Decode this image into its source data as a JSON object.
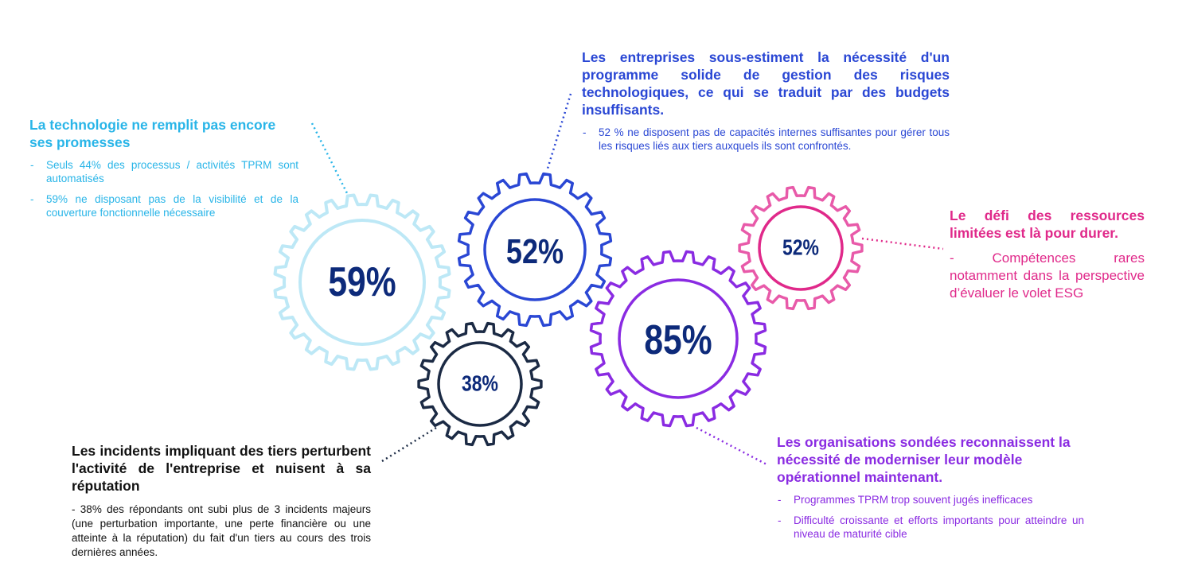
{
  "colors": {
    "light_blue": "#29b5e8",
    "blue": "#2a47d4",
    "pink": "#e0298a",
    "purple": "#8a2be2",
    "navy": "#1b2a44",
    "number": "#0d2a7a"
  },
  "gears": {
    "g59": "59%",
    "g52_blue": "52%",
    "g52_pink": "52%",
    "g85": "85%",
    "g38": "38%"
  },
  "technology": {
    "title": "La technologie ne remplit pas encore ses promesses",
    "bullets": [
      "Seuls 44% des processus / activités TPRM sont automatisés",
      "59% ne disposant pas de la visibilité et de la couverture fonctionnelle nécessaire"
    ]
  },
  "budget": {
    "title": "Les entreprises sous-estiment la nécessité d'un programme solide de gestion des risques technologiques, ce qui se traduit par des budgets insuffisants.",
    "bullets": [
      "52 % ne disposent pas de capacités internes suffisantes pour gérer tous les risques liés aux tiers auxquels ils sont confrontés."
    ]
  },
  "resources": {
    "title": "Le défi des ressources limitées est là pour durer.",
    "body": "- Compétences rares notamment dans la perspective d’évaluer le volet ESG"
  },
  "incidents": {
    "title": "Les incidents impliquant des tiers perturbent l'activité de l'entreprise et nuisent à sa réputation",
    "body": "- 38% des répondants ont subi plus de 3 incidents majeurs (une perturbation importante, une perte financière ou une atteinte à la réputation) du fait d'un tiers au cours des trois dernières années."
  },
  "organizations": {
    "title": "Les organisations sondées reconnaissent la nécessité de moderniser leur modèle opérationnel maintenant.",
    "bullets": [
      "Programmes TPRM trop souvent jugés inefficaces",
      "Difficulté croissante et efforts importants pour atteindre un niveau de maturité cible"
    ]
  }
}
